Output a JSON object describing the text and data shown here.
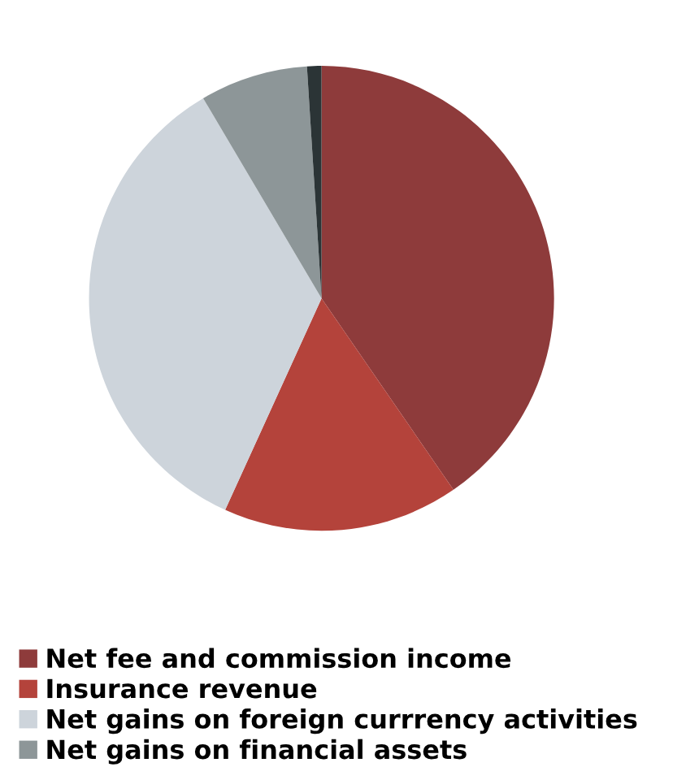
{
  "chart_data": {
    "type": "pie",
    "categories": [
      "Net fee and commission income",
      "Insurance revenue",
      "Net gains on foreign currrency activities",
      "Net gains on financial assets",
      null
    ],
    "values": [
      40.4,
      16.4,
      34.7,
      7.5,
      1.0
    ],
    "colors": [
      "#8e3b3b",
      "#b4433b",
      "#cdd4db",
      "#8d9698",
      "#2b3436"
    ],
    "legend": "bottom"
  }
}
